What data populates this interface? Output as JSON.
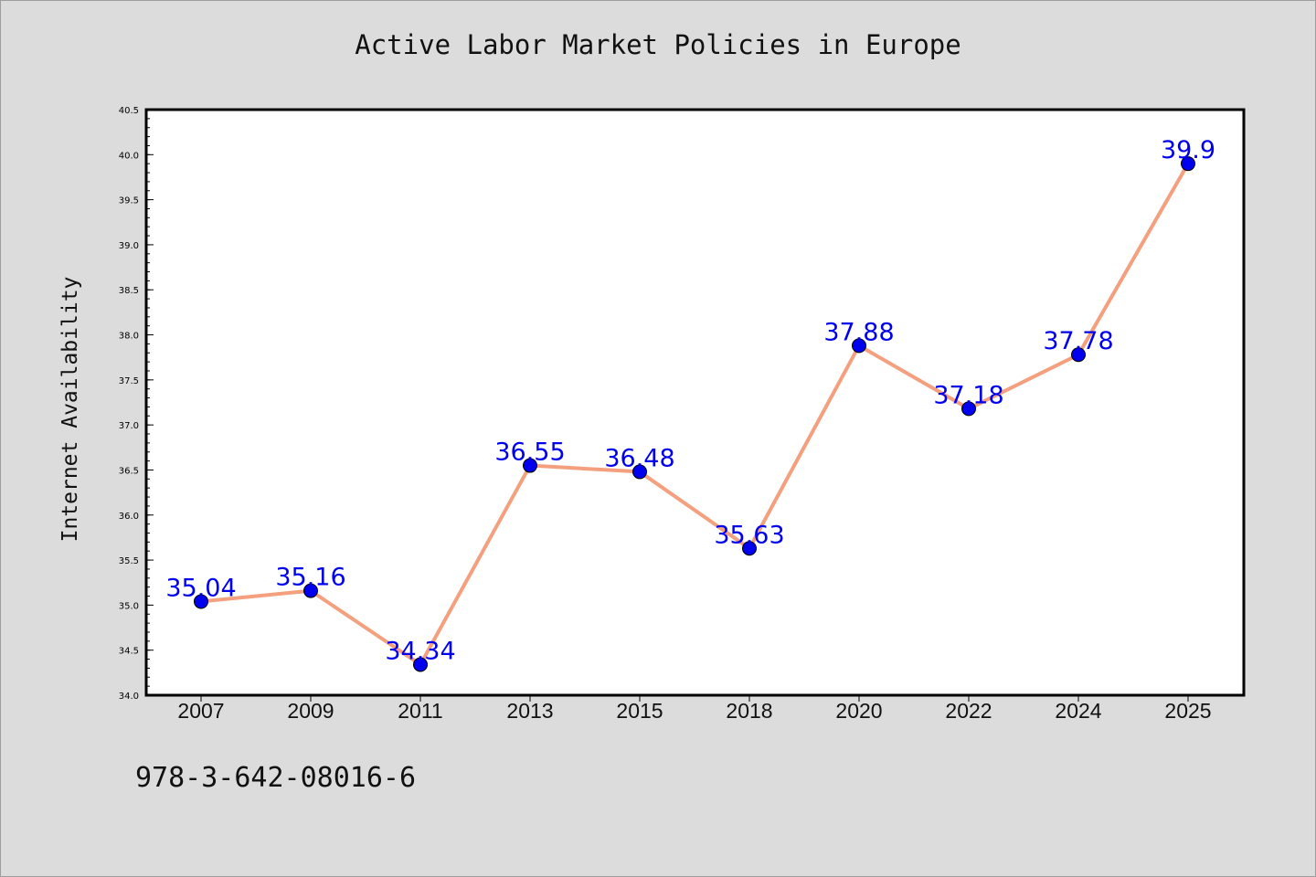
{
  "chart_data": {
    "type": "line",
    "title": "Active Labor Market Policies in Europe",
    "ylabel": "Internet Availability",
    "xlabel": "",
    "categories": [
      "2007",
      "2009",
      "2011",
      "2013",
      "2015",
      "2018",
      "2020",
      "2022",
      "2024",
      "2025"
    ],
    "series": [
      {
        "values": [
          35.04,
          35.16,
          34.34,
          36.55,
          36.48,
          35.63,
          37.88,
          37.18,
          37.78,
          39.9
        ],
        "labels": [
          "35.04",
          "35.16",
          "34.34",
          "36.55",
          "36.48",
          "35.63",
          "37.88",
          "37.18",
          "37.78",
          "39.9"
        ],
        "line_color": "#f4a07e",
        "marker_color": "#0000ee",
        "label_color": "#0000ee"
      }
    ],
    "ylim": [
      34.0,
      40.5
    ],
    "yticks": [
      "34.0",
      "34.5",
      "35.0",
      "35.5",
      "36.0",
      "36.5",
      "37.0",
      "37.5",
      "38.0",
      "38.5",
      "39.0",
      "39.5",
      "40.0",
      "40.5"
    ],
    "grid": false,
    "legend": "none"
  },
  "footer": {
    "isbn": "978-3-642-08016-6"
  }
}
